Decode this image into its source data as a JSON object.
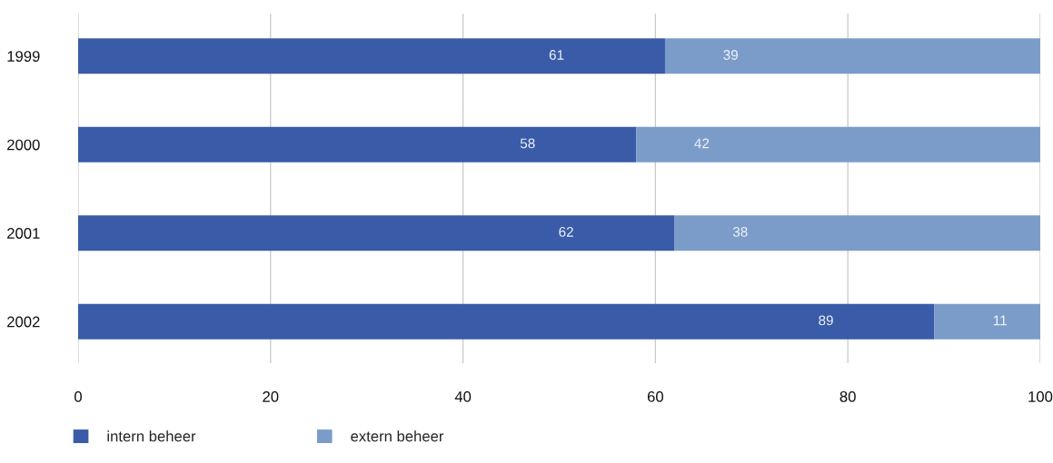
{
  "chart_data": {
    "type": "bar",
    "orientation": "horizontal",
    "stacked": true,
    "categories": [
      "1999",
      "2000",
      "2001",
      "2002"
    ],
    "series": [
      {
        "name": "intern beheer",
        "color": "#3a5ba8",
        "values": [
          61,
          58,
          62,
          89
        ]
      },
      {
        "name": "extern beheer",
        "color": "#7b9cc9",
        "values": [
          39,
          42,
          38,
          11
        ]
      }
    ],
    "xlim": [
      0,
      100
    ],
    "xticks": [
      0,
      20,
      40,
      60,
      80,
      100
    ],
    "grid": "x",
    "legend": "bottom",
    "data_labels": true
  }
}
